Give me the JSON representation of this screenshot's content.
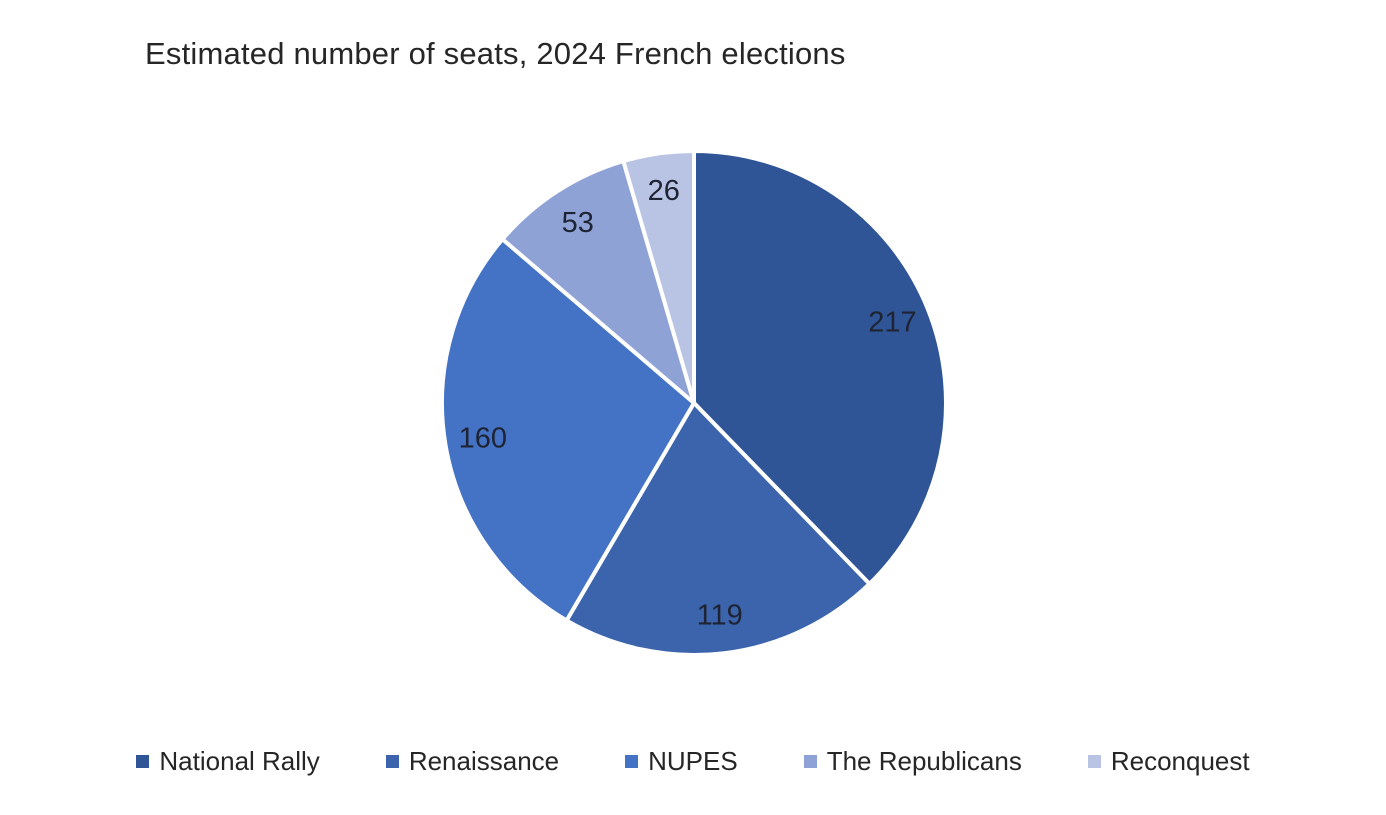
{
  "chart_data": {
    "type": "pie",
    "title": "Estimated number of seats, 2024 French elections",
    "categories": [
      "National Rally",
      "Renaissance",
      "NUPES",
      "The Republicans",
      "Reconquest"
    ],
    "values": [
      217,
      119,
      160,
      53,
      26
    ],
    "colors": [
      "#2F5597",
      "#3C64AC",
      "#4472C4",
      "#8FA2D6",
      "#B9C4E4"
    ],
    "slice_border_color": "#FFFFFF",
    "label_color": "#1E2433",
    "title_color": "#262626",
    "legend_text_color": "#262626",
    "background_color": "#FFFFFF",
    "start_angle_deg": 0,
    "direction": "clockwise",
    "legend_position": "bottom",
    "data_labels_shown": true
  }
}
